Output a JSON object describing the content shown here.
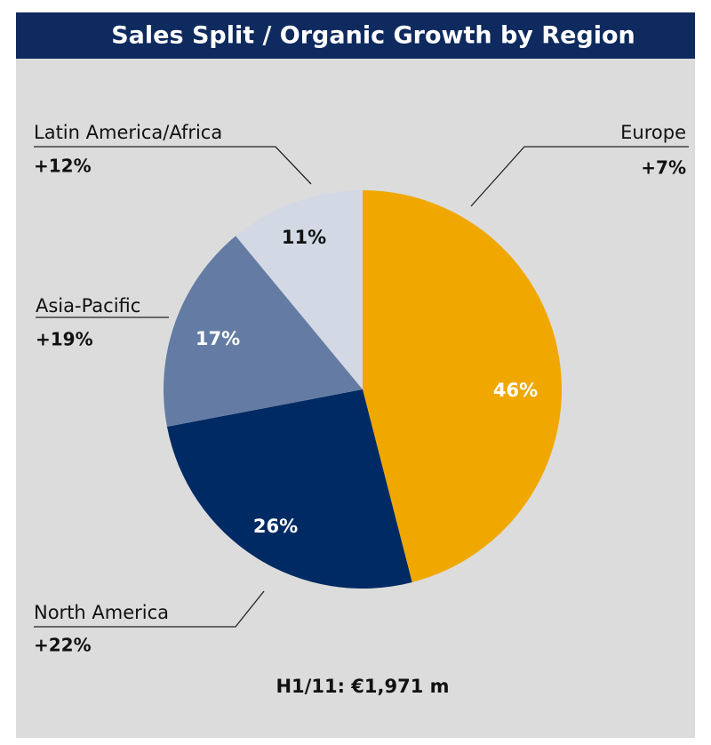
{
  "chart_data": {
    "type": "pie",
    "title": "Sales Split / Organic Growth by Region",
    "categories": [
      "Europe",
      "North America",
      "Asia-Pacific",
      "Latin America/Africa"
    ],
    "values": [
      46,
      26,
      17,
      11
    ],
    "value_labels": [
      "46%",
      "26%",
      "17%",
      "11%"
    ],
    "growth": [
      "+7%",
      "+22%",
      "+19%",
      "+12%"
    ],
    "colors": [
      "#f0a800",
      "#002a63",
      "#647ca3",
      "#d2d8e4"
    ],
    "label_colors": [
      "#ffffff",
      "#ffffff",
      "#ffffff",
      "#111111"
    ],
    "note": "H1/11: €1,971 m"
  }
}
